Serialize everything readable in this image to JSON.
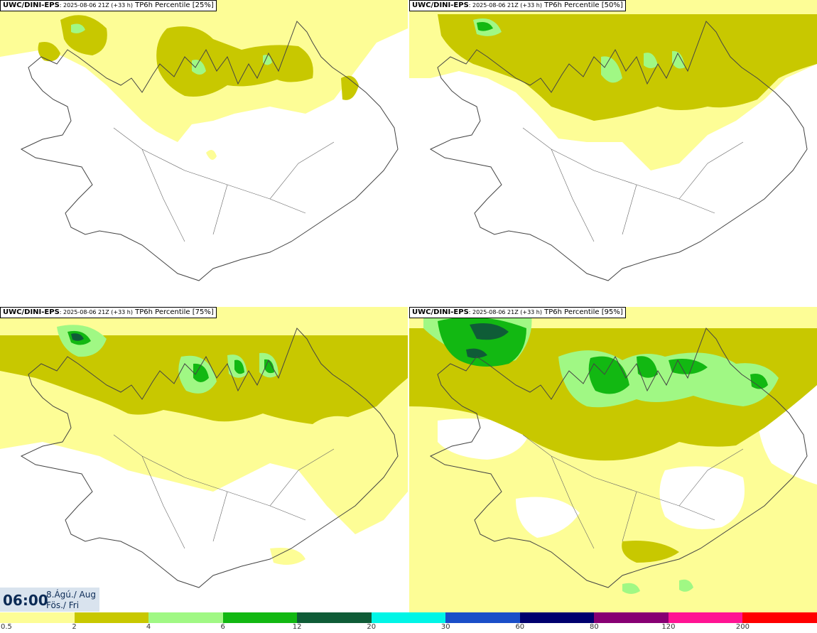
{
  "panels": [
    {
      "model": "UWC/DINI-EPS",
      "run": ": 2025-08-06 21Z (+33 h)",
      "param": " TP6h Percentile [25%]",
      "level": 25
    },
    {
      "model": "UWC/DINI-EPS",
      "run": ": 2025-08-06 21Z (+33 h)",
      "param": " TP6h Percentile [50%]",
      "level": 50
    },
    {
      "model": "UWC/DINI-EPS",
      "run": ": 2025-08-06 21Z (+33 h)",
      "param": " TP6h Percentile [75%]",
      "level": 75
    },
    {
      "model": "UWC/DINI-EPS",
      "run": ": 2025-08-06 21Z (+33 h)",
      "param": " TP6h Percentile [95%]",
      "level": 95
    }
  ],
  "valid": {
    "time": "06:00",
    "date_line1": "8.Ágú./ Aug",
    "date_line2": "Fös./ Fri"
  },
  "legend": {
    "labels": [
      "0.5",
      "2",
      "4",
      "6",
      "12",
      "20",
      "30",
      "60",
      "80",
      "120",
      "200"
    ],
    "colors": [
      "#fdfd96",
      "#c8c800",
      "#a0f884",
      "#12b812",
      "#0f5c37",
      "#00f5e6",
      "#1a4ec8",
      "#00006e",
      "#870073",
      "#ff1493",
      "#ff0000"
    ]
  }
}
